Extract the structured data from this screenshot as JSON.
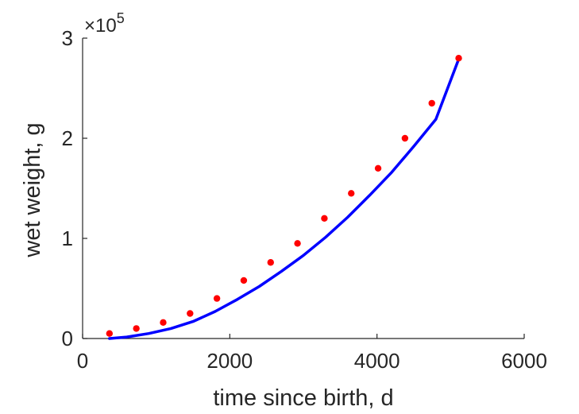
{
  "chart_data": {
    "type": "scatter",
    "xlabel": "time since birth, d",
    "ylabel": "wet weight, g",
    "xlim": [
      0,
      6000
    ],
    "ylim": [
      0,
      300000
    ],
    "x_ticks": [
      0,
      2000,
      4000,
      6000
    ],
    "x_tick_labels": [
      "0",
      "2000",
      "4000",
      "6000"
    ],
    "y_ticks": [
      0,
      100000,
      200000,
      300000
    ],
    "y_tick_labels": [
      "0",
      "1",
      "2",
      "3"
    ],
    "y_exponent_base": "×10",
    "y_exponent_power": "5",
    "grid": false,
    "series": [
      {
        "kind": "points",
        "color": "#ff0000",
        "x": [
          365,
          730,
          1095,
          1460,
          1825,
          2190,
          2555,
          2920,
          3285,
          3650,
          4015,
          4380,
          4745,
          5110
        ],
        "y": [
          5000,
          10000,
          16000,
          25000,
          40000,
          58000,
          76000,
          95000,
          120000,
          145000,
          170000,
          200000,
          235000,
          280000
        ]
      },
      {
        "kind": "line",
        "color": "#0000ff",
        "x": [
          365,
          600,
          900,
          1200,
          1500,
          1800,
          2100,
          2400,
          2700,
          3000,
          3300,
          3600,
          3900,
          4200,
          4500,
          4800,
          5110
        ],
        "y": [
          0,
          1500,
          5000,
          10000,
          17000,
          27000,
          39000,
          52000,
          67000,
          83000,
          101000,
          121000,
          143000,
          166000,
          192000,
          219000,
          279000
        ]
      }
    ]
  }
}
